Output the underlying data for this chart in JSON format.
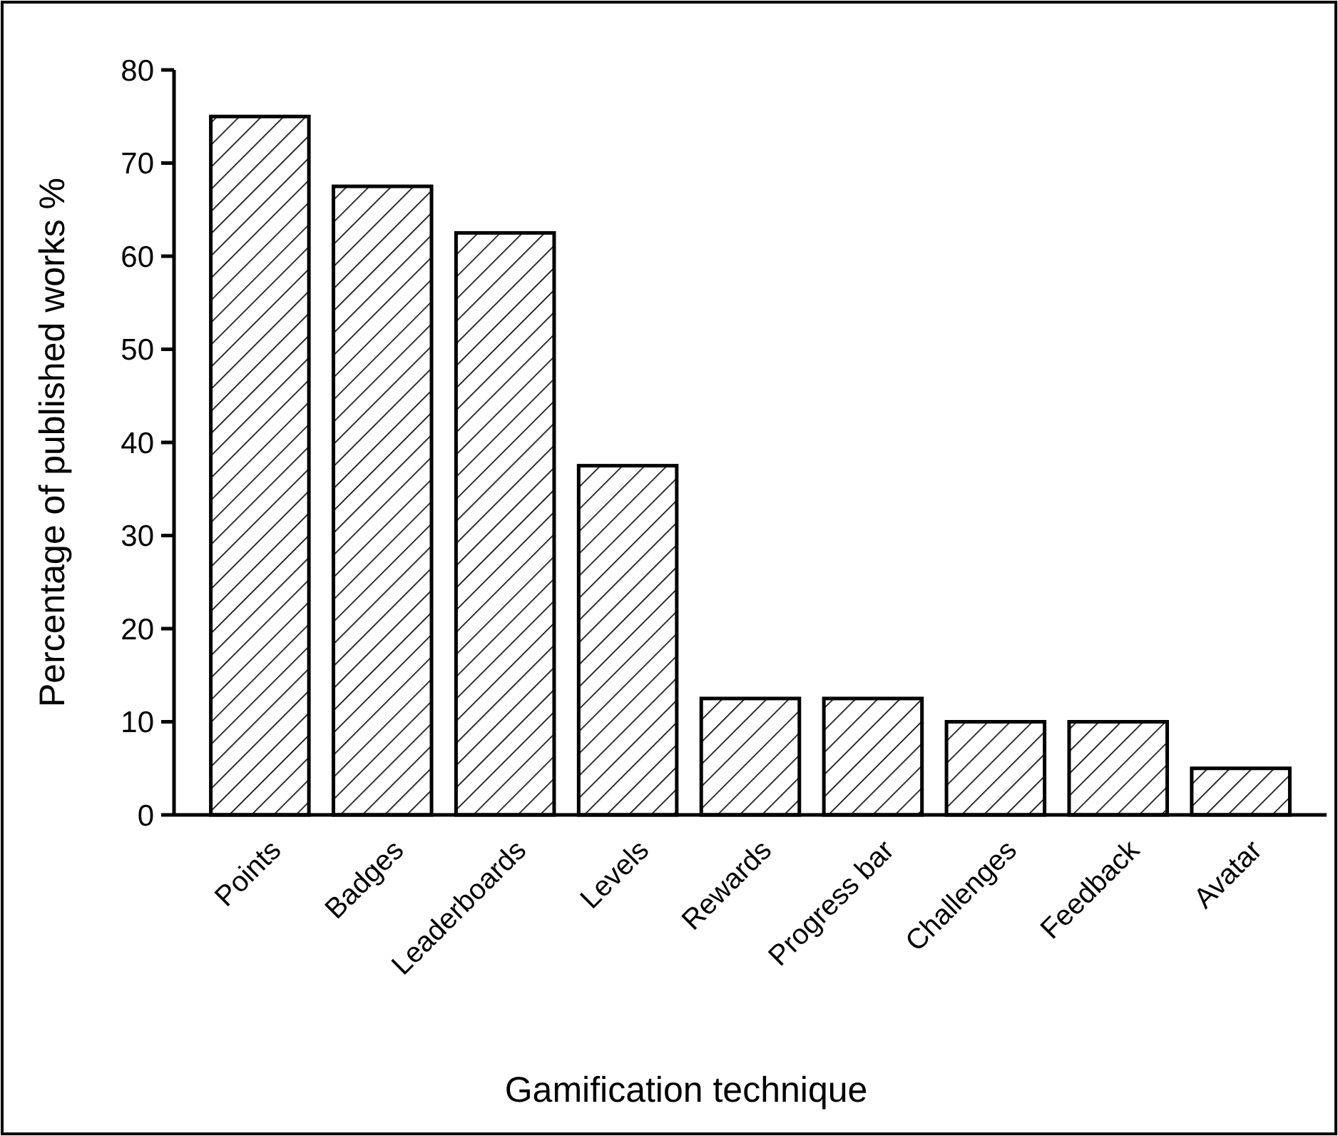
{
  "chart_data": {
    "type": "bar",
    "xlabel": "Gamification technique",
    "ylabel": "Percentage of published works %",
    "categories": [
      "Points",
      "Badges",
      "Leaderboards",
      "Levels",
      "Rewards",
      "Progress bar",
      "Challenges",
      "Feedback",
      "Avatar"
    ],
    "values": [
      75,
      67.5,
      62.5,
      37.5,
      12.5,
      12.5,
      10,
      10,
      5
    ],
    "color": "#000000",
    "ylim": [
      0,
      80
    ],
    "yticks": [
      0,
      10,
      20,
      30,
      40,
      50,
      60,
      70,
      80
    ],
    "grid": false
  }
}
